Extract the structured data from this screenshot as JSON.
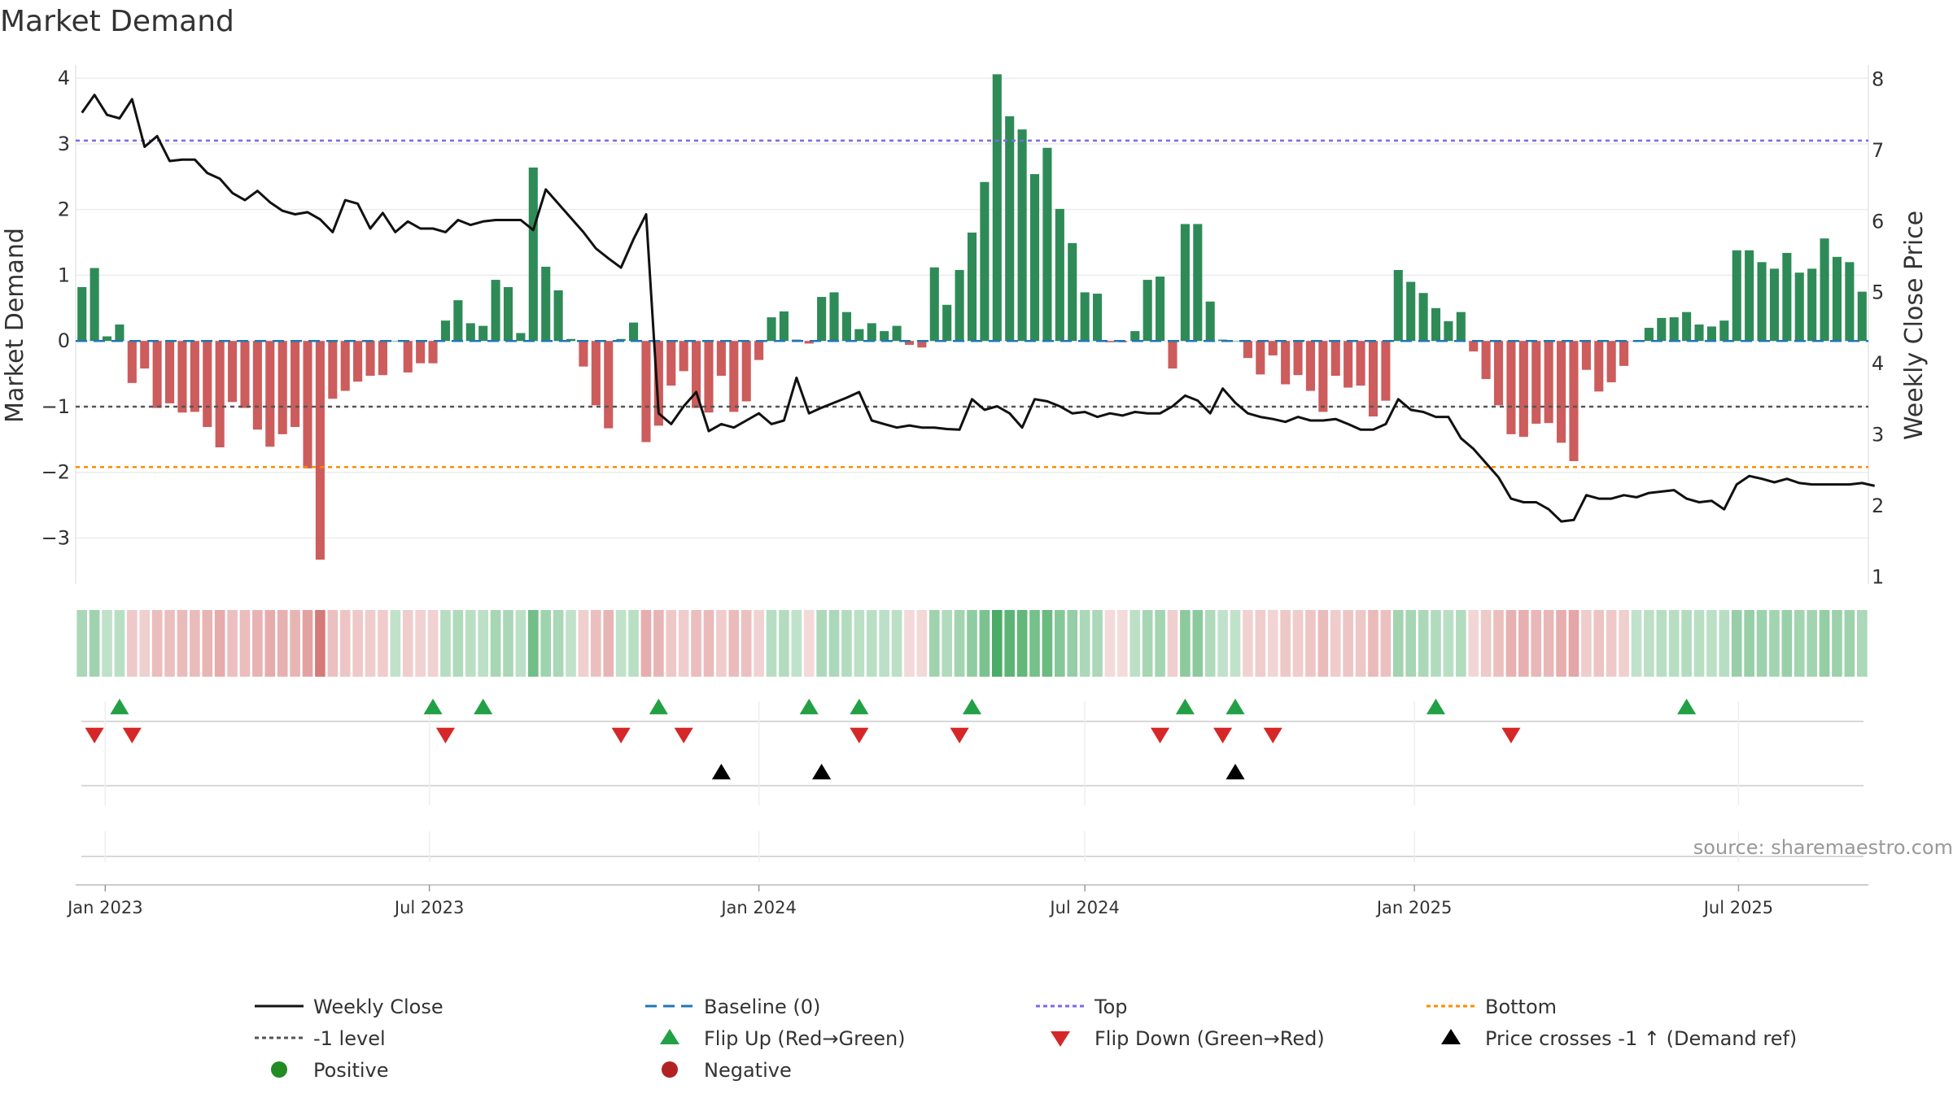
{
  "chart_data": {
    "type": "bar",
    "title": "Market Demand",
    "ylabel_left": "Market Demand",
    "ylabel_right": "Weekly Close Price",
    "ylim_left": [
      -3.7,
      4.2
    ],
    "ylim_right": [
      0.9,
      8.2
    ],
    "yticks_left": [
      4,
      3,
      2,
      1,
      0,
      -1,
      -2,
      -3
    ],
    "yticks_right": [
      8,
      7,
      6,
      5,
      4,
      3,
      2,
      1
    ],
    "x_start": "2022-12-19",
    "x_labels": [
      "Jan 2023",
      "Jul 2023",
      "Jan 2024",
      "Jul 2024",
      "Jan 2025",
      "Jul 2025"
    ],
    "reference_lines": {
      "baseline": 0,
      "top": 3.05,
      "minus_one": -1.0,
      "bottom": -1.92
    },
    "colors": {
      "positive": "#2e8b57",
      "negative": "#cd5c5c",
      "line": "#111111",
      "baseline": "#1f77b4",
      "top": "#7b68ee",
      "minus_one": "#555555",
      "bottom": "#ff8c00",
      "flip_up": "#22a045",
      "flip_down": "#d62728",
      "cross": "#000000"
    },
    "demand": [
      0.82,
      1.11,
      0.07,
      0.25,
      -0.64,
      -0.42,
      -1.02,
      -0.95,
      -1.09,
      -1.08,
      -1.31,
      -1.62,
      -0.93,
      -1.02,
      -1.35,
      -1.61,
      -1.42,
      -1.31,
      -1.94,
      -3.33,
      -0.88,
      -0.76,
      -0.62,
      -0.53,
      -0.52,
      0.0,
      -0.48,
      -0.34,
      -0.34,
      0.31,
      0.62,
      0.27,
      0.23,
      0.93,
      0.82,
      0.12,
      2.64,
      1.13,
      0.77,
      0.03,
      -0.39,
      -0.98,
      -1.33,
      0.03,
      0.28,
      -1.54,
      -1.29,
      -0.68,
      -0.46,
      -1.02,
      -1.09,
      -0.53,
      -1.08,
      -0.92,
      -0.29,
      0.36,
      0.45,
      0.02,
      -0.04,
      0.67,
      0.74,
      0.44,
      0.18,
      0.27,
      0.15,
      0.23,
      -0.06,
      -0.1,
      1.12,
      0.55,
      1.08,
      1.65,
      2.42,
      4.06,
      3.42,
      3.22,
      2.54,
      2.94,
      2.01,
      1.49,
      0.74,
      0.72,
      -0.02,
      -0.02,
      0.15,
      0.93,
      0.98,
      -0.42,
      1.78,
      1.78,
      0.6,
      0.02,
      0.0,
      -0.26,
      -0.51,
      -0.22,
      -0.66,
      -0.52,
      -0.76,
      -1.08,
      -0.53,
      -0.71,
      -0.68,
      -1.15,
      -0.91,
      1.08,
      0.9,
      0.73,
      0.5,
      0.3,
      0.44,
      -0.16,
      -0.58,
      -0.98,
      -1.42,
      -1.46,
      -1.26,
      -1.25,
      -1.55,
      -1.83,
      -0.44,
      -0.77,
      -0.63,
      -0.38,
      0.0,
      0.2,
      0.35,
      0.36,
      0.44,
      0.25,
      0.22,
      0.31,
      1.38,
      1.38,
      1.2,
      1.1,
      1.34,
      1.04,
      1.1,
      1.56,
      1.28,
      1.2,
      0.75
    ],
    "weekly_close": [
      7.53,
      7.78,
      7.5,
      7.45,
      7.72,
      7.05,
      7.2,
      6.85,
      6.87,
      6.87,
      6.68,
      6.6,
      6.4,
      6.3,
      6.43,
      6.27,
      6.15,
      6.1,
      6.13,
      6.03,
      5.85,
      6.3,
      6.25,
      5.9,
      6.12,
      5.85,
      6.0,
      5.9,
      5.9,
      5.85,
      6.02,
      5.95,
      6.0,
      6.02,
      6.02,
      6.02,
      5.88,
      6.45,
      6.25,
      6.05,
      5.85,
      5.62,
      5.48,
      5.35,
      5.75,
      6.1,
      3.3,
      3.15,
      3.4,
      3.6,
      3.05,
      3.15,
      3.1,
      3.2,
      3.3,
      3.15,
      3.2,
      3.8,
      3.3,
      3.38,
      3.45,
      3.52,
      3.6,
      3.2,
      3.15,
      3.1,
      3.13,
      3.1,
      3.1,
      3.08,
      3.07,
      3.5,
      3.35,
      3.4,
      3.3,
      3.1,
      3.5,
      3.47,
      3.4,
      3.3,
      3.32,
      3.25,
      3.3,
      3.27,
      3.32,
      3.3,
      3.3,
      3.4,
      3.55,
      3.48,
      3.3,
      3.65,
      3.45,
      3.3,
      3.25,
      3.22,
      3.18,
      3.25,
      3.2,
      3.2,
      3.22,
      3.15,
      3.07,
      3.07,
      3.15,
      3.5,
      3.35,
      3.32,
      3.25,
      3.25,
      2.95,
      2.8,
      2.6,
      2.4,
      2.1,
      2.05,
      2.05,
      1.95,
      1.78,
      1.8,
      2.15,
      2.1,
      2.1,
      2.15,
      2.12,
      2.18,
      2.2,
      2.22,
      2.1,
      2.05,
      2.07,
      1.95,
      2.3,
      2.42,
      2.38,
      2.33,
      2.38,
      2.32,
      2.3,
      2.3,
      2.3,
      2.3,
      2.32,
      2.28
    ],
    "flip_up_weeks": [
      3,
      28,
      32,
      46,
      58,
      62,
      71,
      88,
      92,
      108,
      128
    ],
    "flip_down_weeks": [
      1,
      4,
      29,
      43,
      48,
      62,
      70,
      86,
      91,
      95,
      114
    ],
    "cross_weeks": [
      51,
      59,
      92
    ],
    "source": "source: sharemaestro.com",
    "legend": [
      {
        "key": "line",
        "label": "Weekly Close"
      },
      {
        "key": "baseline",
        "label": "Baseline (0)"
      },
      {
        "key": "top",
        "label": "Top"
      },
      {
        "key": "bottom",
        "label": "Bottom"
      },
      {
        "key": "minus_one",
        "label": "-1 level"
      },
      {
        "key": "flip_up",
        "label": "Flip Up (Red→Green)"
      },
      {
        "key": "flip_down",
        "label": "Flip Down (Green→Red)"
      },
      {
        "key": "cross",
        "label": "Price crosses -1 ↑ (Demand ref)"
      },
      {
        "key": "positive_dot",
        "label": "Positive"
      },
      {
        "key": "negative_dot",
        "label": "Negative"
      }
    ]
  }
}
